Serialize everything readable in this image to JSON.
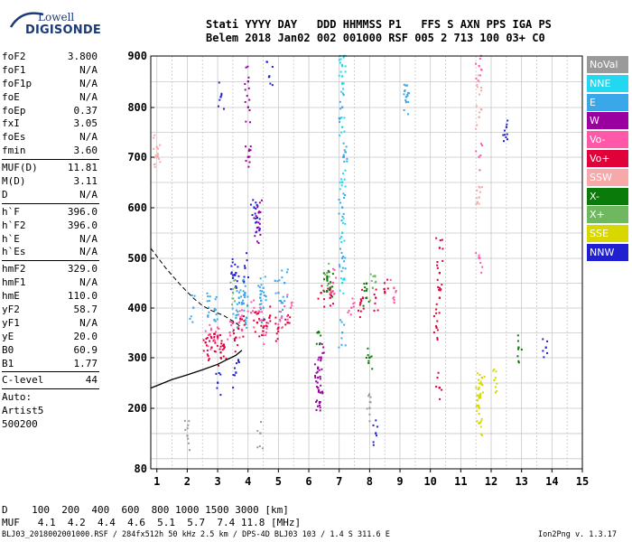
{
  "logo": {
    "line1": "Lowell",
    "line2": "DIGISONDE"
  },
  "header": {
    "row1": "Stati YYYY DAY   DDD HHMMSS P1   FFS S AXN PPS IGA PS",
    "row2": "Belem 2018 Jan02 002 001000 RSF 005 2 713 100 03+ C0"
  },
  "params": [
    {
      "label": "foF2",
      "value": "3.800"
    },
    {
      "label": "foF1",
      "value": "N/A"
    },
    {
      "label": "foF1p",
      "value": "N/A"
    },
    {
      "label": "foE",
      "value": "N/A"
    },
    {
      "label": "foEp",
      "value": "0.37"
    },
    {
      "label": "fxI",
      "value": "3.05"
    },
    {
      "label": "foEs",
      "value": "N/A"
    },
    {
      "label": "fmin",
      "value": "3.60"
    },
    {
      "sep": true
    },
    {
      "label": "MUF(D)",
      "value": "11.81"
    },
    {
      "label": "M(D)",
      "value": "3.11"
    },
    {
      "label": "D",
      "value": "N/A"
    },
    {
      "sep": true
    },
    {
      "label": "h`F",
      "value": "396.0"
    },
    {
      "label": "h`F2",
      "value": "396.0"
    },
    {
      "label": "h`E",
      "value": "N/A"
    },
    {
      "label": "h`Es",
      "value": "N/A"
    },
    {
      "sep": true
    },
    {
      "label": "hmF2",
      "value": "329.0"
    },
    {
      "label": "hmF1",
      "value": "N/A"
    },
    {
      "label": "hmE",
      "value": "110.0"
    },
    {
      "label": "yF2",
      "value": "58.7"
    },
    {
      "label": "yF1",
      "value": "N/A"
    },
    {
      "label": "yE",
      "value": "20.0"
    },
    {
      "label": "B0",
      "value": "60.9"
    },
    {
      "label": "B1",
      "value": "1.77"
    },
    {
      "sep": true
    },
    {
      "label": "C-level",
      "value": "44"
    },
    {
      "sep": true
    },
    {
      "label": "Auto:",
      "value": ""
    },
    {
      "label": "Artist5",
      "value": ""
    },
    {
      "label": "500200",
      "value": ""
    }
  ],
  "legend": [
    {
      "label": "NoVal",
      "color": "#9a9a9a"
    },
    {
      "label": "NNE",
      "color": "#22d8f0"
    },
    {
      "label": "E",
      "color": "#3aa8e8"
    },
    {
      "label": "W",
      "color": "#9a00a0"
    },
    {
      "label": "Vo-",
      "color": "#ff58a8"
    },
    {
      "label": "Vo+",
      "color": "#e0003a"
    },
    {
      "label": "SSW",
      "color": "#f7a8a8"
    },
    {
      "label": "X-",
      "color": "#0a7a0a"
    },
    {
      "label": "X+",
      "color": "#70b860"
    },
    {
      "label": "SSE",
      "color": "#d8d800"
    },
    {
      "label": "NNW",
      "color": "#2020d0"
    }
  ],
  "scale": {
    "d_row": "D    100  200  400  600  800 1000 1500 3000 [km]",
    "muf_row": "MUF   4.1  4.2  4.4  4.6  5.1  5.7  7.4 11.8 [MHz]"
  },
  "footer": "BLJ03_2018002001000.RSF / 284fx512h 50 kHz 2.5 km / DPS-4D BLJ03 103 / 1.4 S 311.6 E",
  "version": "Ion2Png v. 1.3.17",
  "chart_data": {
    "type": "scatter",
    "title": "",
    "xlabel": "",
    "ylabel": "",
    "xlim": [
      0.8,
      15.0
    ],
    "ylim": [
      80,
      900
    ],
    "x_ticks": [
      1,
      2,
      3,
      4,
      5,
      6,
      7,
      8,
      9,
      10,
      11,
      12,
      13,
      14,
      15
    ],
    "y_ticks": [
      80,
      200,
      300,
      400,
      500,
      600,
      700,
      800,
      900
    ],
    "grid": true,
    "series": [
      {
        "name": "E",
        "color": "#3aa8e8",
        "points": [
          [
            3.7,
            420
          ],
          [
            3.8,
            410
          ],
          [
            3.9,
            430
          ],
          [
            3.95,
            380
          ],
          [
            4.4,
            420
          ],
          [
            4.5,
            440
          ],
          [
            4.5,
            400
          ],
          [
            5.0,
            430
          ],
          [
            5.1,
            410
          ],
          [
            5.2,
            450
          ],
          [
            2.7,
            400
          ],
          [
            2.9,
            395
          ],
          [
            7.1,
            600
          ],
          [
            7.1,
            800
          ],
          [
            7.1,
            500
          ],
          [
            7.1,
            350
          ],
          [
            7.15,
            700
          ],
          [
            9.2,
            810
          ],
          [
            9.2,
            820
          ],
          [
            2.2,
            400
          ],
          [
            3.6,
            380
          ]
        ]
      },
      {
        "name": "Vo+",
        "color": "#e0003a",
        "points": [
          [
            2.6,
            330
          ],
          [
            2.8,
            320
          ],
          [
            3.0,
            340
          ],
          [
            3.1,
            310
          ],
          [
            3.2,
            325
          ],
          [
            3.6,
            340
          ],
          [
            3.8,
            355
          ],
          [
            4.3,
            370
          ],
          [
            4.5,
            360
          ],
          [
            4.7,
            380
          ],
          [
            5.0,
            360
          ],
          [
            5.3,
            370
          ],
          [
            6.4,
            430
          ],
          [
            6.7,
            420
          ],
          [
            7.7,
            410
          ],
          [
            8.2,
            420
          ],
          [
            8.5,
            430
          ],
          [
            10.3,
            470
          ],
          [
            10.3,
            520
          ],
          [
            10.3,
            420
          ],
          [
            10.2,
            360
          ],
          [
            10.3,
            240
          ]
        ]
      },
      {
        "name": "Vo-",
        "color": "#ff58a8",
        "points": [
          [
            2.7,
            345
          ],
          [
            3.0,
            360
          ],
          [
            3.4,
            350
          ],
          [
            3.7,
            370
          ],
          [
            4.1,
            390
          ],
          [
            4.4,
            400
          ],
          [
            4.6,
            350
          ],
          [
            5.1,
            380
          ],
          [
            5.4,
            400
          ],
          [
            6.8,
            450
          ],
          [
            7.4,
            400
          ],
          [
            8.8,
            440
          ],
          [
            11.6,
            880
          ],
          [
            11.6,
            700
          ],
          [
            11.6,
            500
          ]
        ]
      },
      {
        "name": "W",
        "color": "#9a00a0",
        "points": [
          [
            6.3,
            240
          ],
          [
            6.3,
            260
          ],
          [
            6.35,
            210
          ],
          [
            6.3,
            280
          ],
          [
            6.4,
            300
          ],
          [
            4.0,
            700
          ],
          [
            4.0,
            800
          ],
          [
            4.0,
            850
          ],
          [
            4.3,
            560
          ],
          [
            4.35,
            590
          ]
        ]
      },
      {
        "name": "X-",
        "color": "#0a7a0a",
        "points": [
          [
            6.6,
            460
          ],
          [
            6.7,
            440
          ],
          [
            7.9,
            420
          ],
          [
            8.0,
            300
          ],
          [
            6.3,
            350
          ],
          [
            12.9,
            320
          ]
        ]
      },
      {
        "name": "SSE",
        "color": "#d8d800",
        "points": [
          [
            11.6,
            240
          ],
          [
            11.6,
            220
          ],
          [
            11.6,
            200
          ],
          [
            11.7,
            260
          ],
          [
            11.6,
            170
          ],
          [
            12.1,
            255
          ]
        ]
      },
      {
        "name": "NNW",
        "color": "#2020d0",
        "points": [
          [
            3.5,
            460
          ],
          [
            3.6,
            470
          ],
          [
            3.9,
            480
          ],
          [
            4.2,
            600
          ],
          [
            4.3,
            580
          ],
          [
            3.1,
            820
          ],
          [
            3.0,
            250
          ],
          [
            3.6,
            270
          ],
          [
            4.7,
            860
          ],
          [
            13.8,
            320
          ],
          [
            12.5,
            760
          ],
          [
            8.2,
            150
          ]
        ]
      },
      {
        "name": "SSW",
        "color": "#f7a8a8",
        "points": [
          [
            11.6,
            850
          ],
          [
            11.6,
            780
          ],
          [
            11.6,
            620
          ],
          [
            1.0,
            700
          ],
          [
            1.0,
            720
          ]
        ]
      },
      {
        "name": "NNE",
        "color": "#22d8f0",
        "points": [
          [
            7.1,
            880
          ],
          [
            7.1,
            860
          ],
          [
            7.1,
            760
          ],
          [
            7.1,
            650
          ],
          [
            7.1,
            550
          ],
          [
            7.1,
            450
          ]
        ]
      },
      {
        "name": "X+",
        "color": "#70b860",
        "points": [
          [
            3.5,
            430
          ],
          [
            6.6,
            470
          ],
          [
            8.1,
            440
          ]
        ]
      },
      {
        "name": "NoVal",
        "color": "#9a9a9a",
        "points": [
          [
            8.0,
            200
          ],
          [
            4.4,
            150
          ],
          [
            2.0,
            145
          ]
        ]
      }
    ],
    "trace_solid": [
      [
        0.8,
        240
      ],
      [
        1.5,
        257
      ],
      [
        2.0,
        266
      ],
      [
        2.5,
        276
      ],
      [
        3.0,
        287
      ],
      [
        3.3,
        296
      ],
      [
        3.6,
        305
      ],
      [
        3.8,
        315
      ]
    ],
    "trace_dashed": [
      [
        0.8,
        520
      ],
      [
        1.3,
        480
      ],
      [
        1.8,
        445
      ],
      [
        2.2,
        420
      ],
      [
        2.5,
        405
      ],
      [
        2.8,
        395
      ],
      [
        3.2,
        385
      ],
      [
        3.6,
        370
      ],
      [
        3.8,
        360
      ]
    ]
  }
}
